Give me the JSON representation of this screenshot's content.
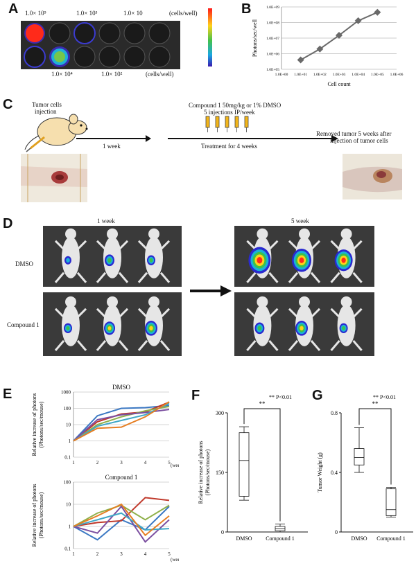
{
  "panels": {
    "A": {
      "letter": "A",
      "top_labels": [
        "1.0× 10⁵",
        "1.0× 10³",
        "1.0× 10"
      ],
      "bottom_labels": [
        "1.0× 10⁴",
        "1.0× 10²"
      ],
      "unit": "(cells/well)"
    },
    "B": {
      "letter": "B"
    },
    "C": {
      "letter": "C",
      "injection_label_1": "Tumor cells",
      "injection_label_2": "injection",
      "one_week": "1 week",
      "compound_line": "Compound 1   50mg/kg  or 1% DMSO",
      "injections_line": "5 injections IP/week",
      "treatment": "Treatment for 4 weeks",
      "removed_1": "Removed tumor 5 weeks after",
      "removed_2": "injection of  tumor cells"
    },
    "D": {
      "letter": "D",
      "week1": "1 week",
      "week5": "5 week",
      "row1": "DMSO",
      "row2": "Compound 1"
    },
    "E": {
      "letter": "E",
      "title_top": "DMSO",
      "title_bottom": "Compound 1",
      "ylabel_1": "Relative increase of photons",
      "ylabel_2": "(Photons/sec/mouse)",
      "xunit": "(week)"
    },
    "F": {
      "letter": "F",
      "sig": "**",
      "pnote": "** P<0.01",
      "ylabel_1": "Relative increase of photons",
      "ylabel_2": "(Photons/sec/mouse)"
    },
    "G": {
      "letter": "G",
      "sig": "**",
      "pnote": "** P<0.01",
      "ylabel": "Tumor Weight (g)"
    }
  },
  "chart_data": [
    {
      "id": "B",
      "type": "line",
      "xlabel": "Cell count",
      "ylabel": "Photons/sec/well",
      "x": [
        10,
        100,
        1000,
        10000,
        100000
      ],
      "y": [
        400000,
        2000000,
        15000000,
        130000000,
        450000000
      ],
      "x_ticks": [
        "1.0E+00",
        "1.0E+01",
        "1.0E+02",
        "1.0E+03",
        "1.0E+04",
        "1.0E+05",
        "1.0E+06"
      ],
      "y_ticks": [
        "1.0E+05",
        "1.0E+06",
        "1.0E+07",
        "1.0E+08",
        "1.0E+09"
      ],
      "xscale": "log",
      "yscale": "log",
      "grid": "horizontal",
      "color": "#6a6a6a"
    },
    {
      "id": "E-DMSO",
      "type": "line",
      "title": "DMSO",
      "x": [
        1,
        2,
        3,
        4,
        5
      ],
      "yscale": "log",
      "ylim": [
        0.1,
        1000
      ],
      "y_ticks": [
        "0.1",
        "1",
        "10",
        "100",
        "1000"
      ],
      "x_ticks": [
        "1",
        "2",
        "3",
        "4",
        "5"
      ],
      "series": [
        {
          "color": "#3b78c3",
          "values": [
            1,
            35,
            100,
            110,
            150
          ]
        },
        {
          "color": "#c0392b",
          "values": [
            1,
            15,
            45,
            60,
            240
          ]
        },
        {
          "color": "#8fb04a",
          "values": [
            1,
            10,
            30,
            70,
            130
          ]
        },
        {
          "color": "#7b4fa0",
          "values": [
            1,
            20,
            40,
            55,
            85
          ]
        },
        {
          "color": "#3fa7c6",
          "values": [
            1,
            8,
            18,
            40,
            200
          ]
        },
        {
          "color": "#e67e22",
          "values": [
            1,
            6,
            7,
            30,
            250
          ]
        }
      ]
    },
    {
      "id": "E-Compound1",
      "type": "line",
      "title": "Compound 1",
      "x": [
        1,
        2,
        3,
        4,
        5
      ],
      "yscale": "log",
      "ylim": [
        0.1,
        100
      ],
      "y_ticks": [
        "0.1",
        "1",
        "10",
        "100"
      ],
      "x_ticks": [
        "1",
        "2",
        "3",
        "4",
        "5"
      ],
      "series": [
        {
          "color": "#3b78c3",
          "values": [
            1,
            0.25,
            2,
            0.7,
            8
          ]
        },
        {
          "color": "#c0392b",
          "values": [
            1,
            1.5,
            1.8,
            20,
            15
          ]
        },
        {
          "color": "#8fb04a",
          "values": [
            1,
            4,
            9,
            2,
            9
          ]
        },
        {
          "color": "#7b4fa0",
          "values": [
            1,
            0.5,
            8,
            0.2,
            2
          ]
        },
        {
          "color": "#3fa7c6",
          "values": [
            1,
            2,
            4,
            0.7,
            0.8
          ]
        },
        {
          "color": "#e67e22",
          "values": [
            1,
            3,
            10,
            0.4,
            3
          ]
        }
      ]
    },
    {
      "id": "F",
      "type": "box",
      "categories": [
        "DMSO",
        "Compound 1"
      ],
      "ylim": [
        0,
        300
      ],
      "y_ticks": [
        "0",
        "150",
        "300"
      ],
      "boxes": [
        {
          "min": 80,
          "q1": 90,
          "median": 180,
          "q3": 250,
          "max": 265
        },
        {
          "min": 0,
          "q1": 3,
          "median": 8,
          "q3": 14,
          "max": 20
        }
      ]
    },
    {
      "id": "G",
      "type": "box",
      "categories": [
        "DMSO",
        "Compound 1"
      ],
      "ylim": [
        0,
        0.8
      ],
      "y_ticks": [
        "0",
        "0.4",
        "0.8"
      ],
      "boxes": [
        {
          "min": 0.4,
          "q1": 0.45,
          "median": 0.5,
          "q3": 0.56,
          "max": 0.7
        },
        {
          "min": 0.1,
          "q1": 0.11,
          "median": 0.15,
          "q3": 0.29,
          "max": 0.3
        }
      ]
    }
  ]
}
